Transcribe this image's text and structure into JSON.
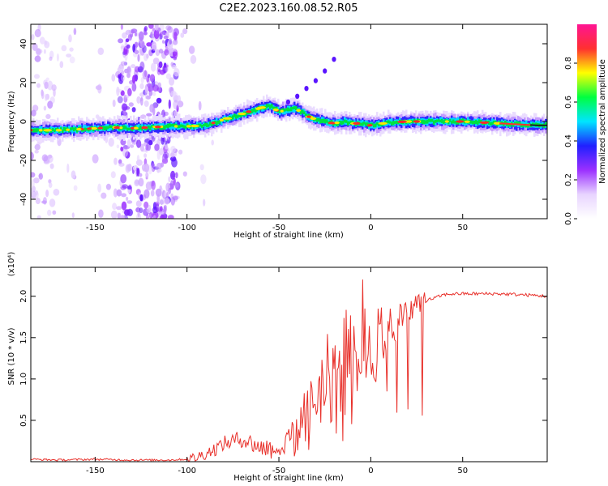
{
  "title": "C2E2.2023.160.08.52.R05",
  "chart_data": [
    {
      "type": "heatmap",
      "xlabel": "Height of straight line (km)",
      "ylabel": "Frequency (Hz)",
      "xlim": [
        -185,
        96
      ],
      "ylim": [
        -50,
        50
      ],
      "xticks": [
        -150,
        -100,
        -50,
        0,
        50
      ],
      "yticks": [
        -40,
        -20,
        0,
        20,
        40
      ],
      "grid": false,
      "colorbar": {
        "label": "Normalized spectral amplitude",
        "range": [
          0,
          1
        ],
        "ticks": [
          "0.0",
          "0.2",
          "0.4",
          "0.6",
          "0.8"
        ],
        "colors": [
          "#ffffff",
          "#e8d4ff",
          "#9b30ff",
          "#2020ff",
          "#00e5ff",
          "#00ff40",
          "#ffff00",
          "#ff3030",
          "#ff1493"
        ]
      },
      "ridge": {
        "x": [
          -185,
          -170,
          -160,
          -150,
          -140,
          -130,
          -120,
          -110,
          -100,
          -90,
          -80,
          -70,
          -60,
          -55,
          -50,
          -45,
          -42,
          -38,
          -35,
          -30,
          -25,
          -20,
          -15,
          -10,
          -5,
          0,
          10,
          20,
          30,
          40,
          50,
          60,
          70,
          80,
          90,
          96
        ],
        "y": [
          -4.5,
          -4.5,
          -4,
          -3.5,
          -3,
          -3.5,
          -3,
          -2.5,
          -2.5,
          -2,
          1,
          4,
          7,
          8,
          5,
          6,
          7,
          5,
          3,
          1,
          0,
          -1,
          0,
          -1,
          -1,
          -2,
          -0.5,
          0,
          0,
          0,
          0,
          -0.5,
          -1,
          -1.5,
          -2,
          -2
        ]
      },
      "harmonic": {
        "x": [
          -45,
          -40,
          -35,
          -30,
          -25,
          -20
        ],
        "y": [
          10,
          13,
          17,
          21,
          26,
          32
        ]
      }
    },
    {
      "type": "line",
      "xlabel": "Height of straight line (km)",
      "ylabel": "SNR (10 * v/v)",
      "y_multiplier_label": "(x10⁴)",
      "xlim": [
        -185,
        96
      ],
      "ylim": [
        0,
        2.35
      ],
      "xticks": [
        -150,
        -100,
        -50,
        0,
        50
      ],
      "yticks": [
        0.5,
        1.0,
        1.5,
        2.0
      ],
      "grid": false,
      "series": [
        {
          "color": "#e8302a",
          "x": [
            -185,
            -170,
            -150,
            -130,
            -110,
            -100,
            -95,
            -90,
            -85,
            -80,
            -75,
            -70,
            -65,
            -60,
            -55,
            -50,
            -45,
            -40,
            -35,
            -30,
            -25,
            -20,
            -15,
            -10,
            -5,
            0,
            5,
            10,
            15,
            20,
            25,
            30,
            35,
            40,
            45,
            50,
            60,
            70,
            80,
            90,
            96
          ],
          "values": [
            0.03,
            0.02,
            0.03,
            0.02,
            0.02,
            0.03,
            0.05,
            0.1,
            0.15,
            0.22,
            0.25,
            0.28,
            0.22,
            0.18,
            0.16,
            0.17,
            0.22,
            0.35,
            0.55,
            0.8,
            1.0,
            1.05,
            1.1,
            1.2,
            1.35,
            1.4,
            1.5,
            1.6,
            1.7,
            1.8,
            1.9,
            1.95,
            1.98,
            2.02,
            2.03,
            2.03,
            2.03,
            2.03,
            2.02,
            2.01,
            2.0
          ]
        }
      ]
    }
  ]
}
